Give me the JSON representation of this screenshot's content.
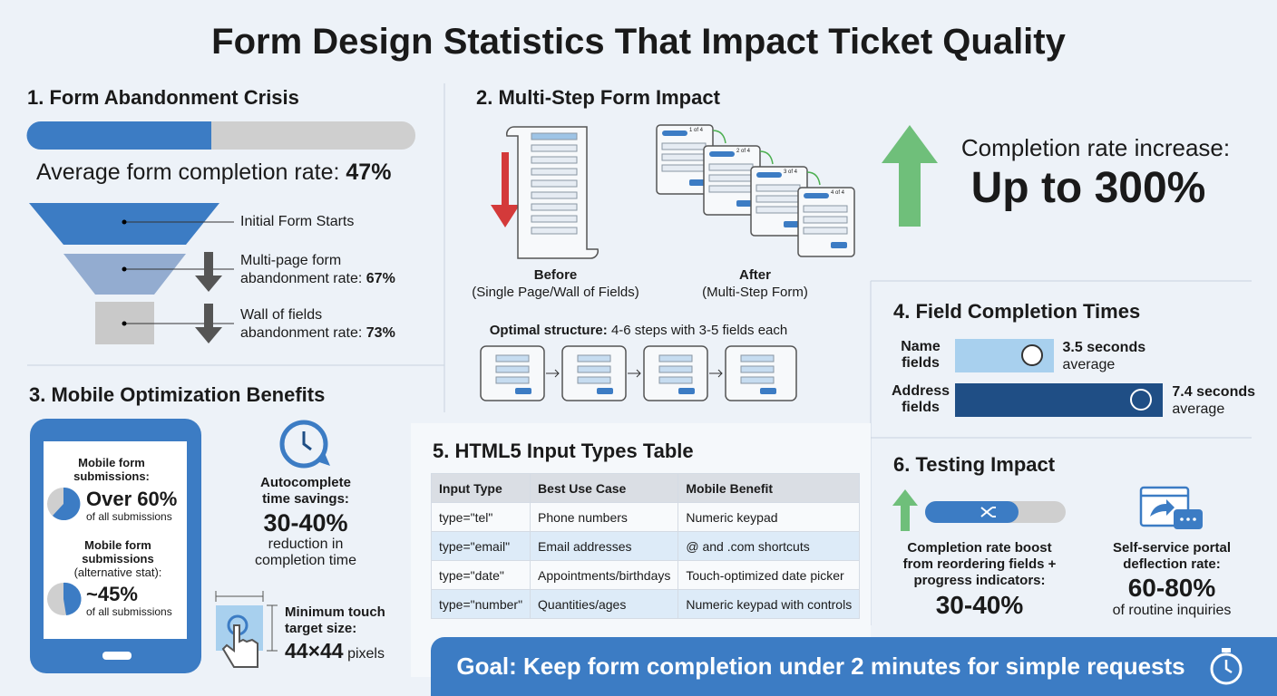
{
  "title": "Form Design Statistics That Impact Ticket Quality",
  "abandonment": {
    "heading": "1. Form Abandonment Crisis",
    "completion_label": "Average form completion rate:",
    "completion_value": "47%",
    "funnel": [
      {
        "text": "Initial Form Starts"
      },
      {
        "text": "Multi-page form abandonment rate:",
        "value": "67%"
      },
      {
        "text": "Wall of fields abandonment rate:",
        "value": "73%"
      }
    ]
  },
  "multistep": {
    "heading": "2. Multi-Step Form Impact",
    "step_labels": [
      "1 of 4",
      "2 of 4",
      "3 of 4",
      "4 of 4"
    ],
    "before": {
      "title": "Before",
      "caption": "(Single Page/Wall of Fields)"
    },
    "after": {
      "title": "After",
      "caption": "(Multi-Step Form)"
    },
    "optimal_label": "Optimal structure:",
    "optimal_text": "4-6 steps with 3-5 fields each"
  },
  "increase": {
    "label": "Completion rate increase:",
    "value": "Up to 300%"
  },
  "mobile": {
    "heading": "3. Mobile Optimization Benefits",
    "stat1": {
      "label": "Mobile form submissions:",
      "value": "Over 60%",
      "sub": "of all submissions"
    },
    "stat2": {
      "label": "Mobile form submissions",
      "note": "(alternative stat):",
      "value": "~45%",
      "sub": "of all submissions"
    },
    "autocomplete": {
      "label": "Autocomplete time savings:",
      "value": "30-40%",
      "sub": "reduction in completion time"
    },
    "touch": {
      "label": "Minimum touch target size:",
      "value": "44×44",
      "unit": "pixels"
    }
  },
  "field_times": {
    "heading": "4. Field Completion Times",
    "rows": [
      {
        "label": "Name fields",
        "value": 3.5,
        "unit": "seconds",
        "sub": "average"
      },
      {
        "label": "Address fields",
        "value": 7.4,
        "unit": "seconds",
        "sub": "average"
      }
    ]
  },
  "table": {
    "heading": "5. HTML5 Input Types Table",
    "columns": [
      "Input Type",
      "Best Use Case",
      "Mobile Benefit"
    ],
    "rows": [
      [
        "type=\"tel\"",
        "Phone numbers",
        "Numeric keypad"
      ],
      [
        "type=\"email\"",
        "Email addresses",
        "@ and .com shortcuts"
      ],
      [
        "type=\"date\"",
        "Appointments/birthdays",
        "Touch-optimized date picker"
      ],
      [
        "type=\"number\"",
        "Quantities/ages",
        "Numeric keypad with controls"
      ]
    ]
  },
  "testing": {
    "heading": "6. Testing Impact",
    "boost": {
      "label": "Completion rate boost from reordering fields + progress indicators:",
      "value": "30-40%"
    },
    "deflection": {
      "label": "Self-service portal deflection rate:",
      "value": "60-80%",
      "sub": "of routine inquiries"
    }
  },
  "goal": "Goal: Keep form completion under 2 minutes for simple requests"
}
